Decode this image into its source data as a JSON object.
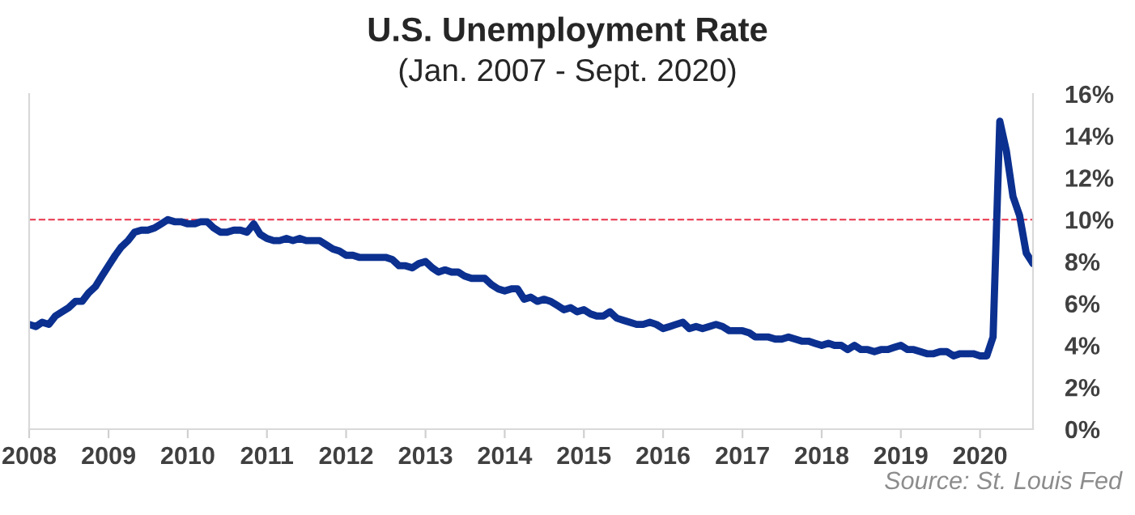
{
  "chart_data": {
    "type": "line",
    "title": "U.S. Unemployment Rate",
    "subtitle": "(Jan. 2007 - Sept. 2020)",
    "annotations": [
      "Source: St. Louis Fed"
    ],
    "x": [
      "2008-01",
      "2008-02",
      "2008-03",
      "2008-04",
      "2008-05",
      "2008-06",
      "2008-07",
      "2008-08",
      "2008-09",
      "2008-10",
      "2008-11",
      "2008-12",
      "2009-01",
      "2009-02",
      "2009-03",
      "2009-04",
      "2009-05",
      "2009-06",
      "2009-07",
      "2009-08",
      "2009-09",
      "2009-10",
      "2009-11",
      "2009-12",
      "2010-01",
      "2010-02",
      "2010-03",
      "2010-04",
      "2010-05",
      "2010-06",
      "2010-07",
      "2010-08",
      "2010-09",
      "2010-10",
      "2010-11",
      "2010-12",
      "2011-01",
      "2011-02",
      "2011-03",
      "2011-04",
      "2011-05",
      "2011-06",
      "2011-07",
      "2011-08",
      "2011-09",
      "2011-10",
      "2011-11",
      "2011-12",
      "2012-01",
      "2012-02",
      "2012-03",
      "2012-04",
      "2012-05",
      "2012-06",
      "2012-07",
      "2012-08",
      "2012-09",
      "2012-10",
      "2012-11",
      "2012-12",
      "2013-01",
      "2013-02",
      "2013-03",
      "2013-04",
      "2013-05",
      "2013-06",
      "2013-07",
      "2013-08",
      "2013-09",
      "2013-10",
      "2013-11",
      "2013-12",
      "2014-01",
      "2014-02",
      "2014-03",
      "2014-04",
      "2014-05",
      "2014-06",
      "2014-07",
      "2014-08",
      "2014-09",
      "2014-10",
      "2014-11",
      "2014-12",
      "2015-01",
      "2015-02",
      "2015-03",
      "2015-04",
      "2015-05",
      "2015-06",
      "2015-07",
      "2015-08",
      "2015-09",
      "2015-10",
      "2015-11",
      "2015-12",
      "2016-01",
      "2016-02",
      "2016-03",
      "2016-04",
      "2016-05",
      "2016-06",
      "2016-07",
      "2016-08",
      "2016-09",
      "2016-10",
      "2016-11",
      "2016-12",
      "2017-01",
      "2017-02",
      "2017-03",
      "2017-04",
      "2017-05",
      "2017-06",
      "2017-07",
      "2017-08",
      "2017-09",
      "2017-10",
      "2017-11",
      "2017-12",
      "2018-01",
      "2018-02",
      "2018-03",
      "2018-04",
      "2018-05",
      "2018-06",
      "2018-07",
      "2018-08",
      "2018-09",
      "2018-10",
      "2018-11",
      "2018-12",
      "2019-01",
      "2019-02",
      "2019-03",
      "2019-04",
      "2019-05",
      "2019-06",
      "2019-07",
      "2019-08",
      "2019-09",
      "2019-10",
      "2019-11",
      "2019-12",
      "2020-01",
      "2020-02",
      "2020-03",
      "2020-04",
      "2020-05",
      "2020-06",
      "2020-07",
      "2020-08",
      "2020-09"
    ],
    "series": [
      {
        "color": "#0b3090",
        "values": [
          5.0,
          4.9,
          5.1,
          5.0,
          5.4,
          5.6,
          5.8,
          6.1,
          6.1,
          6.5,
          6.8,
          7.3,
          7.8,
          8.3,
          8.7,
          9.0,
          9.4,
          9.5,
          9.5,
          9.6,
          9.8,
          10.0,
          9.9,
          9.9,
          9.8,
          9.8,
          9.9,
          9.9,
          9.6,
          9.4,
          9.4,
          9.5,
          9.5,
          9.4,
          9.8,
          9.3,
          9.1,
          9.0,
          9.0,
          9.1,
          9.0,
          9.1,
          9.0,
          9.0,
          9.0,
          8.8,
          8.6,
          8.5,
          8.3,
          8.3,
          8.2,
          8.2,
          8.2,
          8.2,
          8.2,
          8.1,
          7.8,
          7.8,
          7.7,
          7.9,
          8.0,
          7.7,
          7.5,
          7.6,
          7.5,
          7.5,
          7.3,
          7.2,
          7.2,
          7.2,
          6.9,
          6.7,
          6.6,
          6.7,
          6.7,
          6.2,
          6.3,
          6.1,
          6.2,
          6.1,
          5.9,
          5.7,
          5.8,
          5.6,
          5.7,
          5.5,
          5.4,
          5.4,
          5.6,
          5.3,
          5.2,
          5.1,
          5.0,
          5.0,
          5.1,
          5.0,
          4.8,
          4.9,
          5.0,
          5.1,
          4.8,
          4.9,
          4.8,
          4.9,
          5.0,
          4.9,
          4.7,
          4.7,
          4.7,
          4.6,
          4.4,
          4.4,
          4.4,
          4.3,
          4.3,
          4.4,
          4.3,
          4.2,
          4.2,
          4.1,
          4.0,
          4.1,
          4.0,
          4.0,
          3.8,
          4.0,
          3.8,
          3.8,
          3.7,
          3.8,
          3.8,
          3.9,
          4.0,
          3.8,
          3.8,
          3.7,
          3.6,
          3.6,
          3.7,
          3.7,
          3.5,
          3.6,
          3.6,
          3.6,
          3.5,
          3.5,
          4.4,
          14.7,
          13.3,
          11.1,
          10.2,
          8.4,
          7.9
        ]
      }
    ],
    "xlim": [
      "2008-01",
      "2020-09"
    ],
    "xticks": [
      {
        "value": "2008-01",
        "label": "2008"
      },
      {
        "value": "2009-01",
        "label": "2009"
      },
      {
        "value": "2010-01",
        "label": "2010"
      },
      {
        "value": "2011-01",
        "label": "2011"
      },
      {
        "value": "2012-01",
        "label": "2012"
      },
      {
        "value": "2013-01",
        "label": "2013"
      },
      {
        "value": "2014-01",
        "label": "2014"
      },
      {
        "value": "2015-01",
        "label": "2015"
      },
      {
        "value": "2016-01",
        "label": "2016"
      },
      {
        "value": "2017-01",
        "label": "2017"
      },
      {
        "value": "2018-01",
        "label": "2018"
      },
      {
        "value": "2019-01",
        "label": "2019"
      },
      {
        "value": "2020-01",
        "label": "2020"
      }
    ],
    "ylim": [
      0,
      16
    ],
    "yticks": [
      {
        "value": 0,
        "label": "0%"
      },
      {
        "value": 2,
        "label": "2%"
      },
      {
        "value": 4,
        "label": "4%"
      },
      {
        "value": 6,
        "label": "6%"
      },
      {
        "value": 8,
        "label": "8%"
      },
      {
        "value": 10,
        "label": "10%"
      },
      {
        "value": 12,
        "label": "12%"
      },
      {
        "value": 14,
        "label": "14%"
      },
      {
        "value": 16,
        "label": "16%"
      }
    ],
    "ref_lines": [
      {
        "axis": "y",
        "value": 10,
        "color": "#e8334a",
        "line_style": "dashed"
      }
    ],
    "grid": false,
    "legend": false,
    "marker": "none",
    "line_style": "solid"
  }
}
